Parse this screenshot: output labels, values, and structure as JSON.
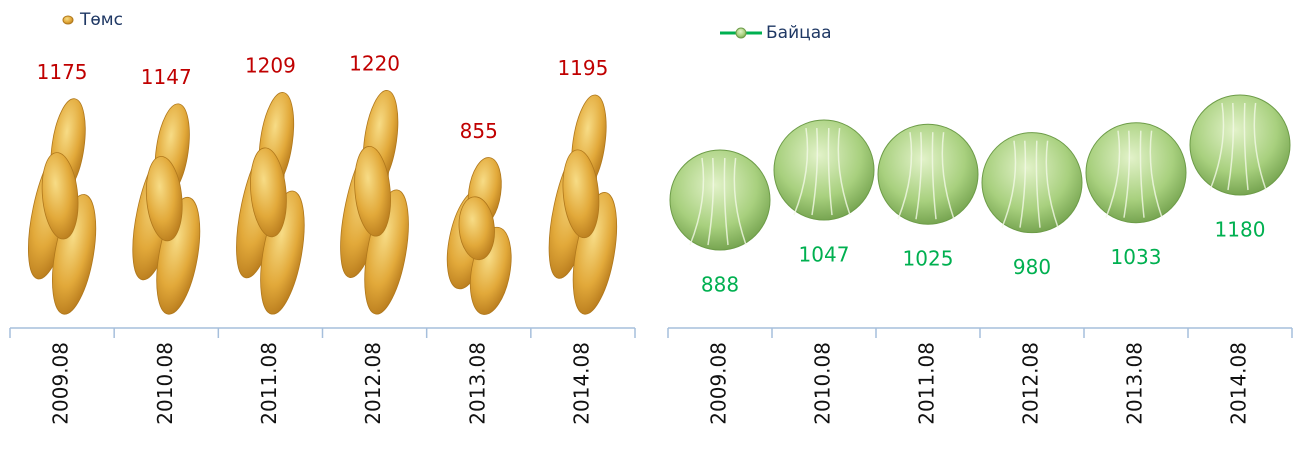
{
  "chart_data": [
    {
      "type": "bar",
      "categories": [
        "2009.08",
        "2010.08",
        "2011.08",
        "2012.08",
        "2013.08",
        "2014.08"
      ],
      "series": [
        {
          "name": "Төмс",
          "color": "#c00000",
          "values": [
            1175,
            1147,
            1209,
            1220,
            855,
            1195
          ]
        }
      ]
    },
    {
      "type": "line",
      "categories": [
        "2009.08",
        "2010.08",
        "2011.08",
        "2012.08",
        "2013.08",
        "2014.08"
      ],
      "series": [
        {
          "name": "Байцаа",
          "color": "#00b050",
          "values": [
            888,
            1047,
            1025,
            980,
            1033,
            1180
          ]
        }
      ]
    }
  ]
}
